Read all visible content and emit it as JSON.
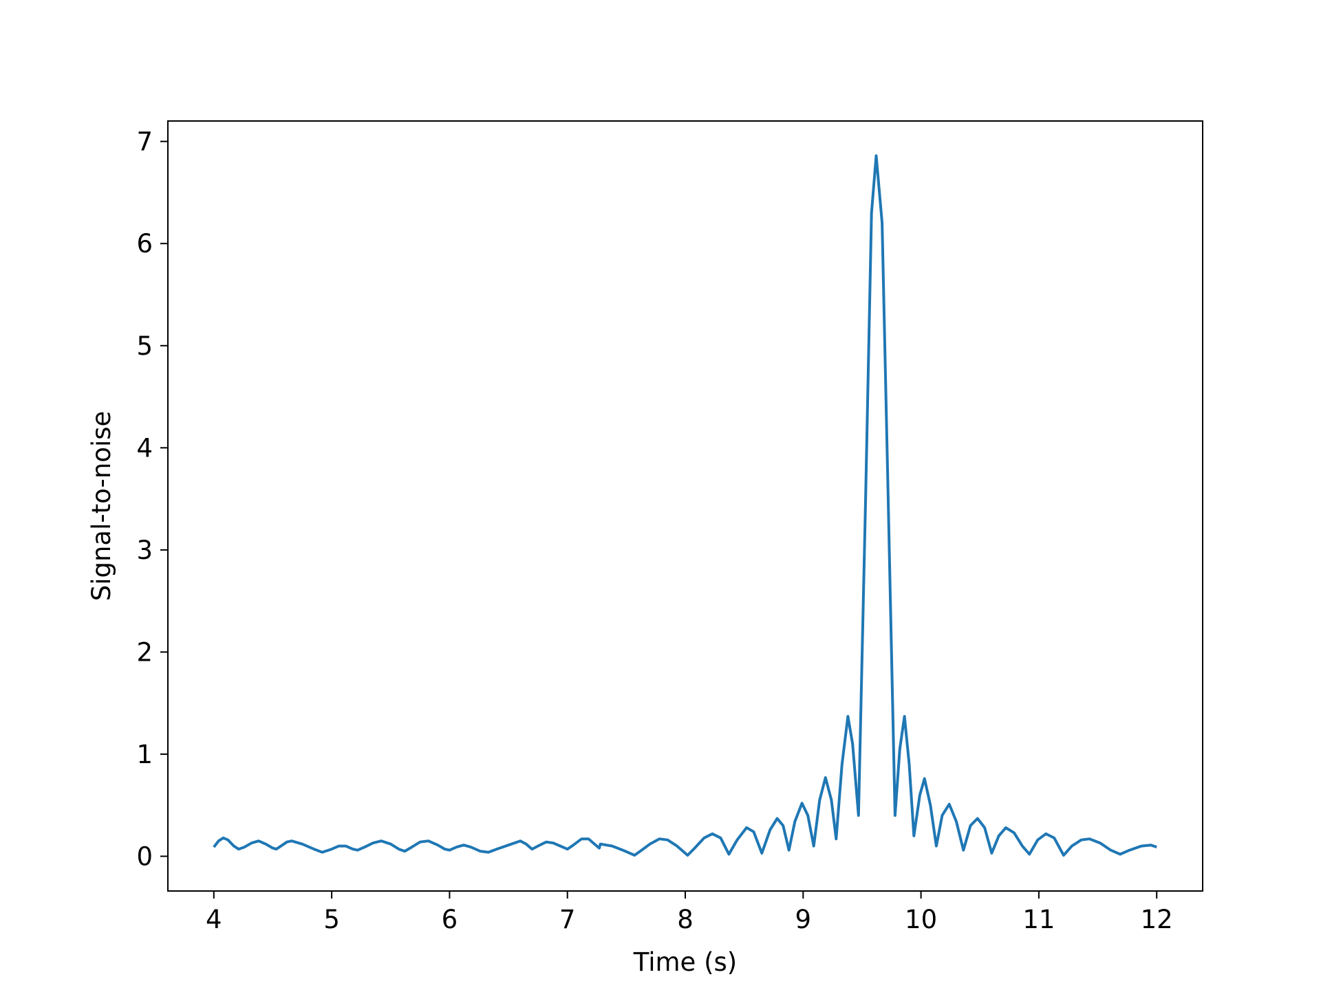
{
  "chart_data": {
    "type": "line",
    "title": "",
    "xlabel": "Time (s)",
    "ylabel": "Signal-to-noise",
    "xlim": [
      3.61,
      12.39
    ],
    "ylim": [
      -0.34,
      7.2
    ],
    "xticks": [
      4,
      5,
      6,
      7,
      8,
      9,
      10,
      11,
      12
    ],
    "yticks": [
      0,
      1,
      2,
      3,
      4,
      5,
      6,
      7
    ],
    "grid": false,
    "legend": "none",
    "series": [
      {
        "color": "#1f77b4",
        "points": [
          [
            4.0,
            0.09
          ],
          [
            4.04,
            0.15
          ],
          [
            4.08,
            0.18
          ],
          [
            4.12,
            0.16
          ],
          [
            4.17,
            0.1
          ],
          [
            4.21,
            0.07
          ],
          [
            4.26,
            0.09
          ],
          [
            4.32,
            0.13
          ],
          [
            4.38,
            0.15
          ],
          [
            4.44,
            0.12
          ],
          [
            4.5,
            0.08
          ],
          [
            4.53,
            0.07
          ],
          [
            4.57,
            0.1
          ],
          [
            4.62,
            0.14
          ],
          [
            4.66,
            0.15
          ],
          [
            4.75,
            0.12
          ],
          [
            4.85,
            0.07
          ],
          [
            4.92,
            0.04
          ],
          [
            5.0,
            0.07
          ],
          [
            5.06,
            0.1
          ],
          [
            5.12,
            0.1
          ],
          [
            5.18,
            0.07
          ],
          [
            5.22,
            0.06
          ],
          [
            5.28,
            0.09
          ],
          [
            5.35,
            0.13
          ],
          [
            5.42,
            0.15
          ],
          [
            5.5,
            0.12
          ],
          [
            5.57,
            0.07
          ],
          [
            5.62,
            0.05
          ],
          [
            5.68,
            0.09
          ],
          [
            5.75,
            0.14
          ],
          [
            5.82,
            0.15
          ],
          [
            5.9,
            0.11
          ],
          [
            5.96,
            0.07
          ],
          [
            6.0,
            0.06
          ],
          [
            6.06,
            0.09
          ],
          [
            6.12,
            0.11
          ],
          [
            6.18,
            0.09
          ],
          [
            6.26,
            0.05
          ],
          [
            6.33,
            0.04
          ],
          [
            6.4,
            0.07
          ],
          [
            6.5,
            0.11
          ],
          [
            6.6,
            0.15
          ],
          [
            6.65,
            0.12
          ],
          [
            6.7,
            0.07
          ],
          [
            6.75,
            0.1
          ],
          [
            6.82,
            0.14
          ],
          [
            6.88,
            0.13
          ],
          [
            6.94,
            0.1
          ],
          [
            7.0,
            0.07
          ],
          [
            7.05,
            0.11
          ],
          [
            7.12,
            0.17
          ],
          [
            7.18,
            0.17
          ],
          [
            7.23,
            0.12
          ],
          [
            7.27,
            0.08
          ],
          [
            7.28,
            0.12
          ],
          [
            7.38,
            0.1
          ],
          [
            7.47,
            0.06
          ],
          [
            7.57,
            0.01
          ],
          [
            7.63,
            0.06
          ],
          [
            7.7,
            0.12
          ],
          [
            7.78,
            0.17
          ],
          [
            7.85,
            0.16
          ],
          [
            7.93,
            0.1
          ],
          [
            8.02,
            0.01
          ],
          [
            8.08,
            0.08
          ],
          [
            8.16,
            0.18
          ],
          [
            8.23,
            0.22
          ],
          [
            8.3,
            0.18
          ],
          [
            8.37,
            0.02
          ],
          [
            8.44,
            0.16
          ],
          [
            8.52,
            0.28
          ],
          [
            8.58,
            0.24
          ],
          [
            8.65,
            0.03
          ],
          [
            8.72,
            0.26
          ],
          [
            8.78,
            0.37
          ],
          [
            8.83,
            0.3
          ],
          [
            8.88,
            0.06
          ],
          [
            8.93,
            0.34
          ],
          [
            8.99,
            0.52
          ],
          [
            9.04,
            0.4
          ],
          [
            9.09,
            0.1
          ],
          [
            9.14,
            0.55
          ],
          [
            9.19,
            0.77
          ],
          [
            9.24,
            0.55
          ],
          [
            9.28,
            0.17
          ],
          [
            9.33,
            0.9
          ],
          [
            9.38,
            1.37
          ],
          [
            9.42,
            1.1
          ],
          [
            9.47,
            0.4
          ],
          [
            9.53,
            3.5
          ],
          [
            9.58,
            6.3
          ],
          [
            9.62,
            6.86
          ],
          [
            9.67,
            6.2
          ],
          [
            9.72,
            3.6
          ],
          [
            9.78,
            0.4
          ],
          [
            9.82,
            1.05
          ],
          [
            9.86,
            1.37
          ],
          [
            9.9,
            0.9
          ],
          [
            9.94,
            0.2
          ],
          [
            9.99,
            0.6
          ],
          [
            10.03,
            0.76
          ],
          [
            10.08,
            0.5
          ],
          [
            10.13,
            0.1
          ],
          [
            10.18,
            0.4
          ],
          [
            10.24,
            0.51
          ],
          [
            10.3,
            0.34
          ],
          [
            10.36,
            0.06
          ],
          [
            10.42,
            0.3
          ],
          [
            10.48,
            0.37
          ],
          [
            10.54,
            0.28
          ],
          [
            10.6,
            0.03
          ],
          [
            10.66,
            0.2
          ],
          [
            10.72,
            0.28
          ],
          [
            10.79,
            0.23
          ],
          [
            10.86,
            0.1
          ],
          [
            10.92,
            0.02
          ],
          [
            10.99,
            0.16
          ],
          [
            11.06,
            0.22
          ],
          [
            11.13,
            0.18
          ],
          [
            11.21,
            0.01
          ],
          [
            11.28,
            0.1
          ],
          [
            11.36,
            0.16
          ],
          [
            11.43,
            0.17
          ],
          [
            11.52,
            0.13
          ],
          [
            11.61,
            0.06
          ],
          [
            11.69,
            0.02
          ],
          [
            11.77,
            0.06
          ],
          [
            11.87,
            0.1
          ],
          [
            11.95,
            0.11
          ],
          [
            12.0,
            0.09
          ]
        ]
      }
    ]
  }
}
